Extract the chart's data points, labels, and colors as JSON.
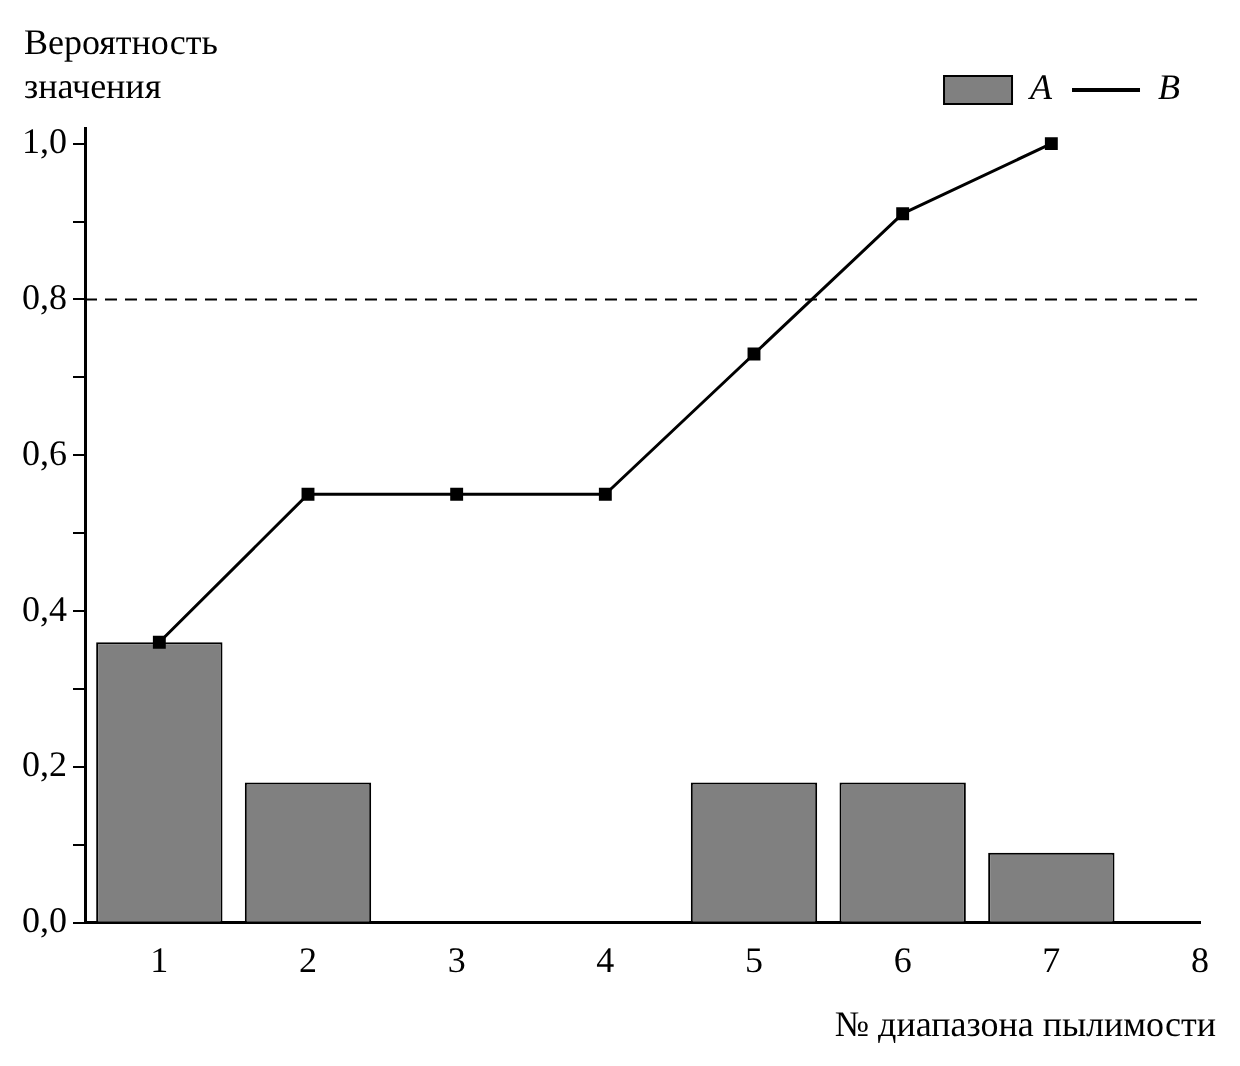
{
  "chart_data": {
    "type": "bar",
    "xlabel": "№ диапазона пылимости",
    "ylabel": "Вероятность значения",
    "x": [
      1,
      2,
      3,
      4,
      5,
      6,
      7
    ],
    "series": [
      {
        "name": "A",
        "color": "#808080",
        "values": [
          0.36,
          0.18,
          0,
          0,
          0.18,
          0.18,
          0.09
        ]
      },
      {
        "name": "B",
        "type": "line",
        "color": "#000000",
        "values": [
          0.36,
          0.55,
          0.55,
          0.55,
          0.73,
          0.91,
          1.0
        ]
      }
    ],
    "xlim": [
      0.5,
      8
    ],
    "xticks": [
      1,
      2,
      3,
      4,
      5,
      6,
      7,
      8
    ],
    "ylim": [
      0,
      1.02
    ],
    "yticks": [
      {
        "value": 0,
        "label": "0,0"
      },
      {
        "value": 0.1,
        "label": null
      },
      {
        "value": 0.2,
        "label": "0,2"
      },
      {
        "value": 0.3,
        "label": null
      },
      {
        "value": 0.4,
        "label": "0,4"
      },
      {
        "value": 0.5,
        "label": null
      },
      {
        "value": 0.6,
        "label": "0,6"
      },
      {
        "value": 0.7,
        "label": null
      },
      {
        "value": 0.8,
        "label": "0,8"
      },
      {
        "value": 0.9,
        "label": null
      },
      {
        "value": 1.0,
        "label": "1,0"
      }
    ],
    "ref_lines": [
      {
        "axis": "y",
        "value": 0.8,
        "line_style": "dashed",
        "color": "#000000"
      }
    ],
    "marker": "square",
    "line_style": "solid",
    "grid": false,
    "legend": "top right"
  }
}
